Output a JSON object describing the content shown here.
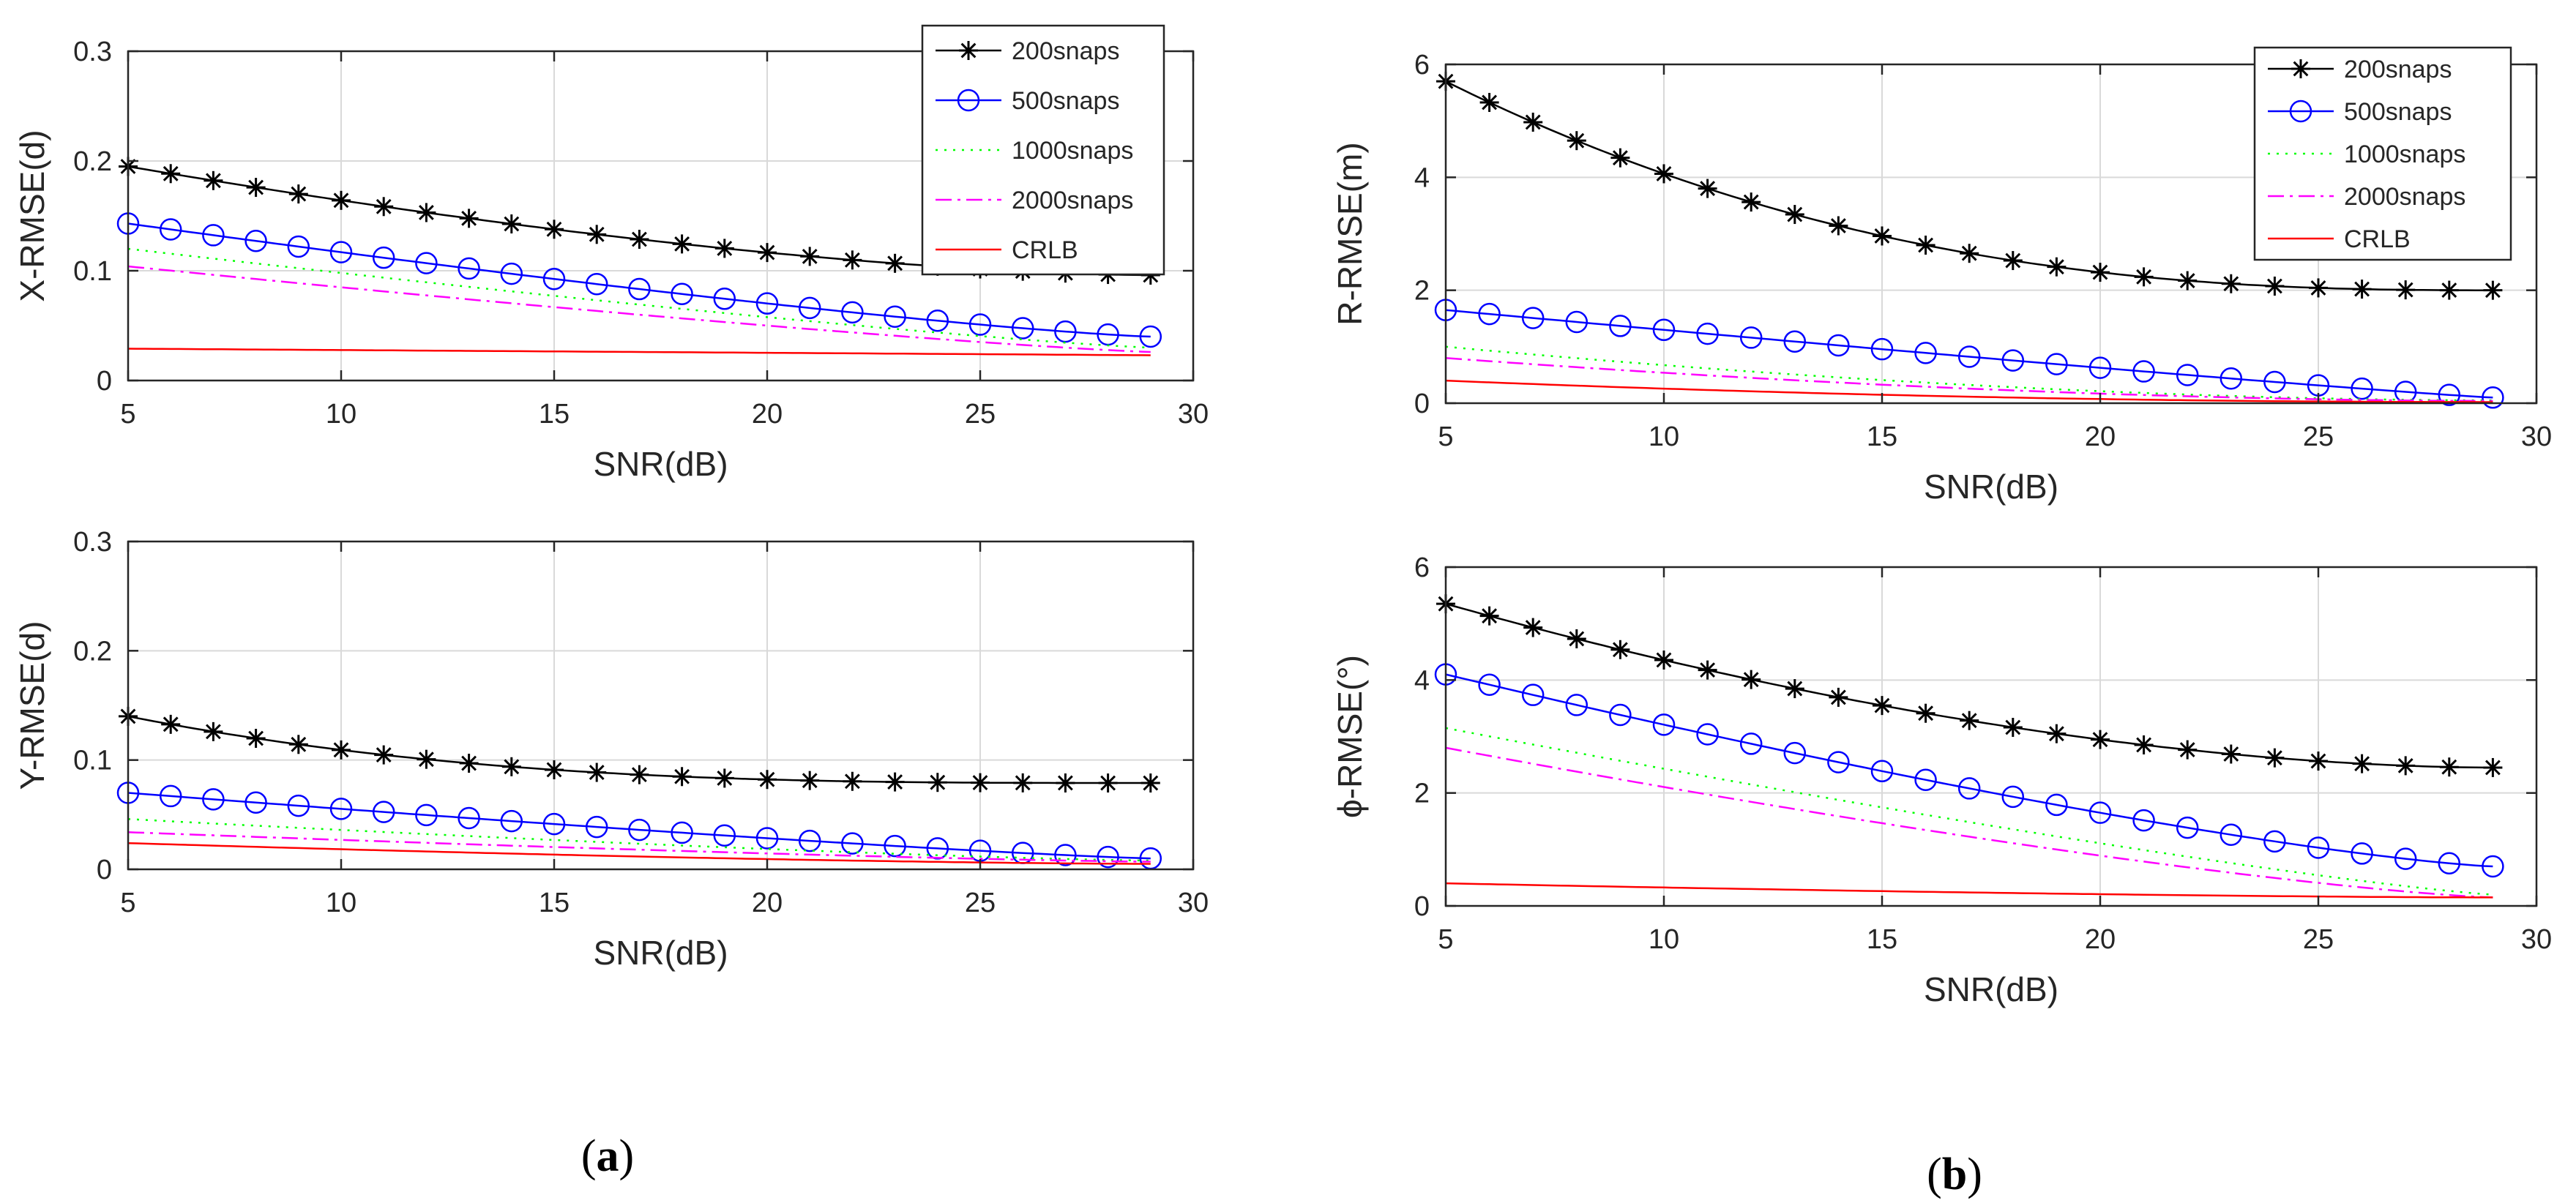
{
  "colors": {
    "s200": "#000000",
    "s500": "#0000ff",
    "s1000": "#00ff00",
    "s2000": "#ff00ff",
    "crlb": "#ff0000",
    "grid": "#d9d9d9",
    "axis": "#262626"
  },
  "icons": [
    "asterisk-marker",
    "circle-marker"
  ],
  "panels": {
    "a": "a",
    "b": "b"
  },
  "legend_labels": [
    "200snaps",
    "500snaps",
    "1000snaps",
    "2000snaps",
    "CRLB"
  ],
  "chart_data": [
    {
      "id": "x-rmse",
      "type": "line",
      "xlabel": "SNR(dB)",
      "ylabel": "X-RMSE(d)",
      "xlim": [
        5,
        30
      ],
      "ylim": [
        0,
        0.3
      ],
      "xticks": [
        5,
        10,
        15,
        20,
        25,
        30
      ],
      "yticks": [
        0,
        0.1,
        0.2,
        0.3
      ],
      "ytick_labels": [
        "0",
        "0.1",
        "0.2",
        "0.3"
      ],
      "grid": true,
      "legend": "top-right",
      "x": [
        5,
        29
      ],
      "series": [
        {
          "name": "200snaps",
          "marker": "asterisk",
          "style": "solid",
          "start": 0.195,
          "end": 0.096,
          "shape": 1.6
        },
        {
          "name": "500snaps",
          "marker": "circle",
          "style": "solid",
          "start": 0.143,
          "end": 0.04,
          "shape": 1.25
        },
        {
          "name": "1000snaps",
          "marker": "none",
          "style": "dotted",
          "start": 0.12,
          "end": 0.03,
          "shape": 1.2
        },
        {
          "name": "2000snaps",
          "marker": "none",
          "style": "dashdot",
          "start": 0.104,
          "end": 0.026,
          "shape": 1.2
        },
        {
          "name": "CRLB",
          "marker": "none",
          "style": "solid",
          "start": 0.029,
          "end": 0.023,
          "shape": 1.0
        }
      ]
    },
    {
      "id": "y-rmse",
      "type": "line",
      "xlabel": "SNR(dB)",
      "ylabel": "Y-RMSE(d)",
      "xlim": [
        5,
        30
      ],
      "ylim": [
        0,
        0.3
      ],
      "xticks": [
        5,
        10,
        15,
        20,
        25,
        30
      ],
      "yticks": [
        0,
        0.1,
        0.2,
        0.3
      ],
      "ytick_labels": [
        "0",
        "0.1",
        "0.2",
        "0.3"
      ],
      "grid": true,
      "legend": "none",
      "x": [
        5,
        29
      ],
      "series": [
        {
          "name": "200snaps",
          "marker": "asterisk",
          "style": "solid",
          "start": 0.14,
          "end": 0.079,
          "shape": 3.0
        },
        {
          "name": "500snaps",
          "marker": "circle",
          "style": "solid",
          "start": 0.07,
          "end": 0.01,
          "shape": 1.2
        },
        {
          "name": "1000snaps",
          "marker": "none",
          "style": "dotted",
          "start": 0.046,
          "end": 0.008,
          "shape": 1.3
        },
        {
          "name": "2000snaps",
          "marker": "none",
          "style": "dashdot",
          "start": 0.034,
          "end": 0.007,
          "shape": 1.3
        },
        {
          "name": "CRLB",
          "marker": "none",
          "style": "solid",
          "start": 0.024,
          "end": 0.005,
          "shape": 1.5
        }
      ]
    },
    {
      "id": "r-rmse",
      "type": "line",
      "xlabel": "SNR(dB)",
      "ylabel": "R-RMSE(m)",
      "xlim": [
        5,
        30
      ],
      "ylim": [
        0,
        6
      ],
      "xticks": [
        5,
        10,
        15,
        20,
        25,
        30
      ],
      "yticks": [
        0,
        2,
        4,
        6
      ],
      "ytick_labels": [
        "0",
        "2",
        "4",
        "6"
      ],
      "grid": true,
      "legend": "top-right",
      "x": [
        5,
        29
      ],
      "series": [
        {
          "name": "200snaps",
          "marker": "asterisk",
          "style": "solid",
          "start": 5.7,
          "end": 2.0,
          "shape": 2.5
        },
        {
          "name": "500snaps",
          "marker": "circle",
          "style": "solid",
          "start": 1.65,
          "end": 0.1,
          "shape": 1.1
        },
        {
          "name": "1000snaps",
          "marker": "none",
          "style": "dotted",
          "start": 1.0,
          "end": 0.05,
          "shape": 1.8
        },
        {
          "name": "2000snaps",
          "marker": "none",
          "style": "dashdot",
          "start": 0.8,
          "end": 0.04,
          "shape": 1.8
        },
        {
          "name": "CRLB",
          "marker": "none",
          "style": "solid",
          "start": 0.4,
          "end": 0.02,
          "shape": 2.0
        }
      ]
    },
    {
      "id": "phi-rmse",
      "type": "line",
      "xlabel": "SNR(dB)",
      "ylabel": "ϕ-RMSE(°)",
      "xlim": [
        5,
        30
      ],
      "ylim": [
        0,
        6
      ],
      "xticks": [
        5,
        10,
        15,
        20,
        25,
        30
      ],
      "yticks": [
        0,
        2,
        4,
        6
      ],
      "ytick_labels": [
        "0",
        "2",
        "4",
        "6"
      ],
      "grid": true,
      "legend": "none",
      "x": [
        5,
        29
      ],
      "series": [
        {
          "name": "200snaps",
          "marker": "asterisk",
          "style": "solid",
          "start": 5.35,
          "end": 2.45,
          "shape": 1.8
        },
        {
          "name": "500snaps",
          "marker": "circle",
          "style": "solid",
          "start": 4.1,
          "end": 0.7,
          "shape": 1.3
        },
        {
          "name": "1000snaps",
          "marker": "none",
          "style": "dotted",
          "start": 3.15,
          "end": 0.2,
          "shape": 1.2
        },
        {
          "name": "2000snaps",
          "marker": "none",
          "style": "dashdot",
          "start": 2.8,
          "end": 0.15,
          "shape": 1.3
        },
        {
          "name": "CRLB",
          "marker": "none",
          "style": "solid",
          "start": 0.4,
          "end": 0.15,
          "shape": 1.5
        }
      ]
    }
  ]
}
